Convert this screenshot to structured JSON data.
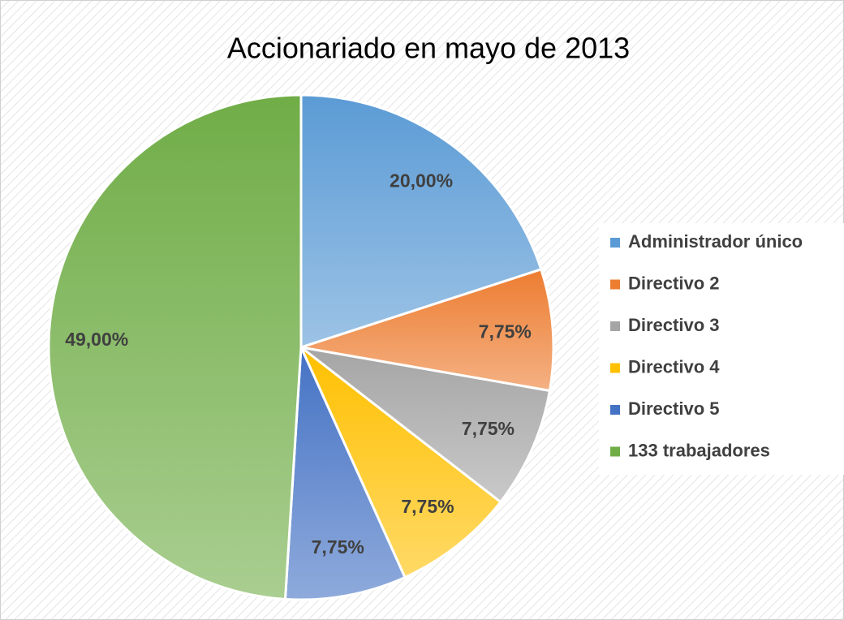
{
  "chart_data": {
    "type": "pie",
    "title": "Accionariado en mayo de 2013",
    "categories": [
      "Administrador único",
      "Directivo 2",
      "Directivo 3",
      "Directivo 4",
      "Directivo 5",
      "133 trabajadores"
    ],
    "values": [
      20,
      7.75,
      7.75,
      7.75,
      7.75,
      49
    ],
    "value_labels": [
      "20,00%",
      "7,75%",
      "7,75%",
      "7,75%",
      "7,75%",
      "49,00%"
    ],
    "colors": [
      "#5b9bd5",
      "#ed7d31",
      "#a5a5a5",
      "#ffc000",
      "#4472c4",
      "#70ad47"
    ],
    "legend": "right"
  }
}
